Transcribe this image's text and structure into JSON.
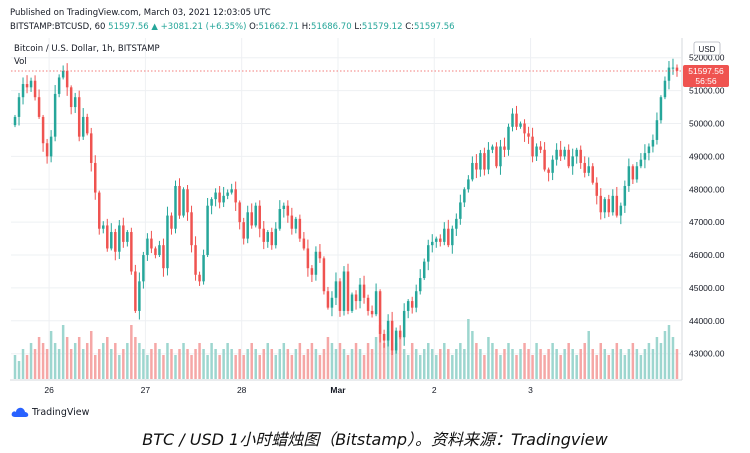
{
  "header": {
    "published": "Published on TradingView.com, March 03, 2021 12:03:05 UTC",
    "symbol_line": "BITSTAMP:BTCUSD, 60",
    "last": "51597.56",
    "up_arrow": "▲",
    "change": "+3081.21 (+6.35%)",
    "o_label": "O:",
    "o_val": "51662.71",
    "h_label": "H:",
    "h_val": "51686.70",
    "l_label": "L:",
    "l_val": "51579.12",
    "c_label": "C:",
    "c_val": "51597.56"
  },
  "chart_title": "Bitcoin / U.S. Dollar, 1h, BITSTAMP",
  "vol_label": "Vol",
  "brand": "TradingView",
  "caption": "BTC / USD 1小时蜡烛图（Bitstamp）。资料来源：Tradingview",
  "colors": {
    "up": "#26a69a",
    "down": "#ef5350",
    "up_vol": "#9dd6cf",
    "down_vol": "#f5a7a6",
    "grid": "#eef0f3"
  },
  "chart_data": {
    "type": "candlestick",
    "currency_badge": "USD",
    "ylim": [
      42200,
      52600
    ],
    "y_ticks": [
      43000,
      44000,
      45000,
      46000,
      47000,
      48000,
      49000,
      50000,
      51000,
      52000
    ],
    "y_tick_labels": [
      "43000.00",
      "44000.00",
      "45000.00",
      "46000.00",
      "47000.00",
      "48000.00",
      "49000.00",
      "50000.00",
      "51000.00",
      "52000.00"
    ],
    "x_ticks": [
      8.5,
      32.5,
      56.5,
      80.5,
      104.5,
      128.5
    ],
    "x_tick_labels": [
      "26",
      "27",
      "28",
      "Mar",
      "2",
      "3"
    ],
    "last_price_label": "51597.56",
    "countdown_label": "56:56",
    "last_price": 51597.56,
    "candles_close": [
      50200,
      50800,
      51200,
      51100,
      51300,
      50800,
      50200,
      49400,
      49000,
      49600,
      50900,
      51400,
      51600,
      51100,
      50500,
      50800,
      49600,
      50200,
      49700,
      48800,
      47900,
      46800,
      46900,
      46200,
      46700,
      46100,
      46900,
      46400,
      46700,
      45500,
      44300,
      45200,
      46000,
      46500,
      46200,
      46000,
      46300,
      45600,
      47200,
      46800,
      48100,
      47200,
      48000,
      47300,
      46300,
      45400,
      45200,
      46000,
      47500,
      47700,
      47900,
      47600,
      47800,
      47900,
      48000,
      47600,
      47000,
      46500,
      47300,
      46900,
      47500,
      46800,
      46400,
      46700,
      46300,
      46800,
      47400,
      47500,
      47200,
      46800,
      47100,
      46500,
      46200,
      45600,
      45400,
      46100,
      45900,
      44900,
      44400,
      44700,
      45200,
      44300,
      45500,
      44300,
      44800,
      44600,
      45100,
      44700,
      44300,
      44200,
      44900,
      43600,
      43400,
      44000,
      43100,
      43700,
      43500,
      44300,
      44600,
      44400,
      44900,
      45300,
      45800,
      46300,
      46400,
      46500,
      46400,
      46800,
      46300,
      46800,
      47100,
      47600,
      48000,
      48300,
      48800,
      48600,
      49100,
      48600,
      49200,
      49300,
      48700,
      49300,
      49200,
      49900,
      50300,
      49900,
      50000,
      49700,
      49600,
      49000,
      49300,
      49200,
      48600,
      48500,
      48900,
      49200,
      49000,
      49200,
      48700,
      49000,
      49200,
      48800,
      48500,
      48700,
      48200,
      47800,
      47300,
      47700,
      47300,
      47800,
      47200,
      47500,
      48100,
      48700,
      48300,
      48700,
      48900,
      49100,
      49300,
      49500,
      50100,
      50800,
      51300,
      51700,
      51700,
      51600
    ],
    "volume_relative": [
      0.4,
      0.3,
      0.5,
      0.4,
      0.6,
      0.5,
      0.7,
      0.6,
      0.5,
      0.8,
      0.6,
      0.5,
      0.9,
      0.7,
      0.5,
      0.6,
      0.7,
      0.5,
      0.6,
      0.8,
      0.4,
      0.5,
      0.6,
      0.7,
      0.5,
      0.6,
      0.4,
      0.5,
      0.6,
      0.9,
      0.7,
      0.6,
      0.5,
      0.4,
      0.5,
      0.6,
      0.5,
      0.4,
      0.6,
      0.5,
      0.4,
      0.5,
      0.6,
      0.5,
      0.4,
      0.5,
      0.6,
      0.5,
      0.4,
      0.6,
      0.5,
      0.4,
      0.5,
      0.6,
      0.5,
      0.4,
      0.5,
      0.4,
      0.5,
      0.6,
      0.5,
      0.4,
      0.5,
      0.6,
      0.5,
      0.4,
      0.5,
      0.6,
      0.5,
      0.4,
      0.5,
      0.6,
      0.4,
      0.5,
      0.6,
      0.5,
      0.4,
      0.5,
      0.7,
      0.6,
      0.5,
      0.6,
      0.5,
      0.4,
      0.5,
      0.6,
      0.5,
      0.4,
      0.6,
      0.5,
      0.7,
      0.9,
      0.6,
      0.8,
      0.5,
      0.6,
      0.7,
      0.5,
      0.4,
      0.6,
      0.5,
      0.4,
      0.5,
      0.6,
      0.5,
      0.4,
      0.5,
      0.6,
      0.5,
      0.4,
      0.5,
      0.6,
      0.5,
      1.0,
      0.8,
      0.6,
      0.5,
      0.4,
      0.7,
      0.6,
      0.5,
      0.4,
      0.5,
      0.6,
      0.5,
      0.4,
      0.5,
      0.6,
      0.5,
      0.4,
      0.6,
      0.5,
      0.4,
      0.5,
      0.6,
      0.5,
      0.4,
      0.5,
      0.6,
      0.5,
      0.4,
      0.5,
      0.6,
      0.8,
      0.5,
      0.4,
      0.6,
      0.5,
      0.4,
      0.5,
      0.6,
      0.5,
      0.4,
      0.5,
      0.6,
      0.5,
      0.4,
      0.5,
      0.6,
      0.5,
      0.7,
      0.6,
      0.8,
      0.9,
      0.7,
      0.5
    ]
  }
}
